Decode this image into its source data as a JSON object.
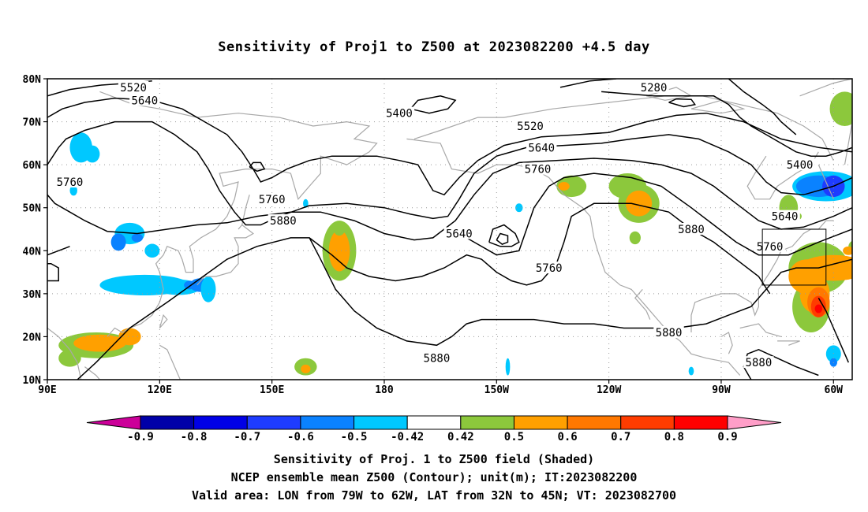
{
  "title": "Sensitivity of Proj1 to Z500 at 2023082200 +4.5 day",
  "lat_ticks": [
    "80N",
    "70N",
    "60N",
    "50N",
    "40N",
    "30N",
    "20N",
    "10N"
  ],
  "lon_ticks": [
    "90E",
    "120E",
    "150E",
    "180",
    "150W",
    "120W",
    "90W",
    "60W"
  ],
  "contour_labels": [
    {
      "text": "5520",
      "lon": 113,
      "lat": 78
    },
    {
      "text": "5640",
      "lon": 116,
      "lat": 75
    },
    {
      "text": "5760",
      "lon": 96,
      "lat": 56
    },
    {
      "text": "5400",
      "lon": 184,
      "lat": 72
    },
    {
      "text": "5280",
      "lon": 252,
      "lat": 78
    },
    {
      "text": "5520",
      "lon": 219,
      "lat": 69
    },
    {
      "text": "5640",
      "lon": 222,
      "lat": 64
    },
    {
      "text": "5760",
      "lon": 221,
      "lat": 59
    },
    {
      "text": "5760",
      "lon": 150,
      "lat": 52
    },
    {
      "text": "5880",
      "lon": 153,
      "lat": 47
    },
    {
      "text": "5640",
      "lon": 200,
      "lat": 44
    },
    {
      "text": "5760",
      "lon": 224,
      "lat": 36
    },
    {
      "text": "5880",
      "lon": 262,
      "lat": 45
    },
    {
      "text": "5400",
      "lon": 291,
      "lat": 60
    },
    {
      "text": "5640",
      "lon": 287,
      "lat": 48
    },
    {
      "text": "5760",
      "lon": 283,
      "lat": 41
    },
    {
      "text": "5880",
      "lon": 194,
      "lat": 15
    },
    {
      "text": "5880",
      "lon": 256,
      "lat": 21
    },
    {
      "text": "5880",
      "lon": 280,
      "lat": 14
    }
  ],
  "colorbar": {
    "labels": [
      "-0.9",
      "-0.8",
      "-0.7",
      "-0.6",
      "-0.5",
      "-0.42",
      "0.42",
      "0.5",
      "0.6",
      "0.7",
      "0.8",
      "0.9"
    ],
    "colors": [
      "#cc0099",
      "#0000a8",
      "#0000e6",
      "#1e3cff",
      "#0a82ff",
      "#00c8ff",
      "#ffffff",
      "#8cc83c",
      "#ffa000",
      "#ff7800",
      "#ff3c00",
      "#ff0000",
      "#ff9ec8"
    ]
  },
  "valid_area": {
    "lon_min": -79,
    "lon_max": -62,
    "lat_min": 32,
    "lat_max": 45
  },
  "captions": [
    "Sensitivity of Proj. 1 to Z500 field (Shaded)",
    "NCEP ensemble mean Z500 (Contour); unit(m); IT:2023082200",
    "Valid area: LON from 79W to 62W, LAT from 32N to 45N; VT: 2023082700"
  ]
}
